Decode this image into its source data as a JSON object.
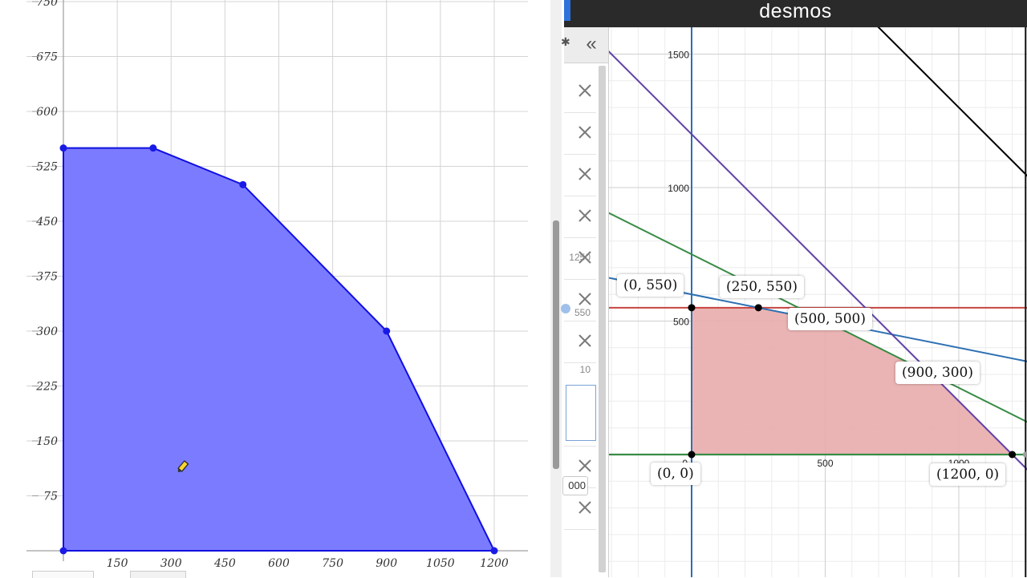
{
  "left_plot": {
    "y_ticks": [
      "75",
      "150",
      "225",
      "300",
      "375",
      "450",
      "525",
      "600",
      "675",
      "750"
    ],
    "x_ticks": [
      "150",
      "300",
      "450",
      "600",
      "750",
      "900",
      "1050",
      "1200"
    ],
    "fill_color": "#7b7bff",
    "edge_color": "#1010e0"
  },
  "desmos": {
    "logo": "desmos",
    "collapse_icon": "«",
    "expressions": [
      {
        "value": ""
      },
      {
        "value": ""
      },
      {
        "value": ""
      },
      {
        "value": "1250"
      },
      {
        "value": "550"
      },
      {
        "value": "10"
      },
      {
        "value": "10"
      },
      {
        "value": "000"
      },
      {
        "value": ""
      }
    ],
    "axis": {
      "y_ticks": [
        "500",
        "1000",
        "1500"
      ],
      "x_ticks": [
        "0",
        "500",
        "1000"
      ]
    },
    "point_labels": [
      "(0, 550)",
      "(250, 550)",
      "(500, 500)",
      "(900, 300)",
      "(0, 0)",
      "(1200, 0)"
    ],
    "colors": {
      "feasible_fill": "#e9acac",
      "red_line": "#c74440",
      "green_line": "#388c46",
      "blue_line": "#2d70b3",
      "purple_line": "#6042a6",
      "black_line": "#000000"
    }
  },
  "chart_data": {
    "type": "area",
    "title": "",
    "xlabel": "",
    "ylabel": "",
    "xlim": [
      0,
      1200
    ],
    "ylim": [
      0,
      750
    ],
    "series": [
      {
        "x": [
          0,
          250,
          500,
          900,
          1200,
          0
        ],
        "y": [
          550,
          550,
          500,
          300,
          0,
          0
        ]
      }
    ],
    "grid": true
  }
}
